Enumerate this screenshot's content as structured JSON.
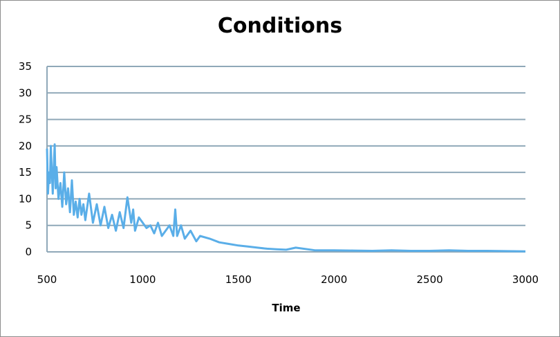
{
  "chart_data": {
    "type": "line",
    "title": "Conditions",
    "xlabel": "Time",
    "ylabel": "",
    "xlim": [
      500,
      3000
    ],
    "ylim": [
      0,
      35
    ],
    "xticks": [
      500,
      1000,
      1500,
      2000,
      2500,
      3000
    ],
    "yticks": [
      0,
      5,
      10,
      15,
      20,
      25,
      30,
      35
    ],
    "grid": "horizontal",
    "legend": "none",
    "series": [
      {
        "color": "#5aaee8",
        "x": [
          500,
          505,
          510,
          515,
          520,
          530,
          540,
          545,
          550,
          560,
          570,
          580,
          590,
          600,
          610,
          620,
          630,
          640,
          650,
          660,
          670,
          680,
          690,
          700,
          720,
          740,
          760,
          780,
          800,
          820,
          840,
          860,
          880,
          900,
          920,
          940,
          950,
          960,
          980,
          1000,
          1020,
          1040,
          1060,
          1080,
          1100,
          1120,
          1140,
          1160,
          1170,
          1180,
          1200,
          1220,
          1250,
          1280,
          1300,
          1350,
          1400,
          1450,
          1500,
          1550,
          1600,
          1650,
          1700,
          1750,
          1800,
          1900,
          2000,
          2100,
          2200,
          2300,
          2400,
          2500,
          2600,
          2700,
          2800,
          2900,
          3000
        ],
        "y": [
          19.5,
          11,
          15,
          13,
          20,
          11,
          20.3,
          12,
          16,
          10,
          13,
          8.5,
          15,
          9,
          12,
          7.5,
          13.5,
          7,
          9.5,
          6.5,
          10,
          7,
          9,
          6,
          11,
          5.5,
          9,
          5,
          8.5,
          4.5,
          7,
          4,
          7.5,
          4.5,
          10.3,
          5.5,
          8,
          4,
          6.5,
          5.5,
          4.5,
          5,
          3.5,
          5.5,
          3,
          4,
          5,
          3,
          8,
          3,
          5,
          2.5,
          4,
          2,
          3,
          2.5,
          1.8,
          1.5,
          1.2,
          1,
          0.8,
          0.6,
          0.5,
          0.4,
          0.8,
          0.3,
          0.3,
          0.25,
          0.2,
          0.3,
          0.2,
          0.2,
          0.3,
          0.2,
          0.2,
          0.15,
          0.1
        ]
      }
    ]
  }
}
